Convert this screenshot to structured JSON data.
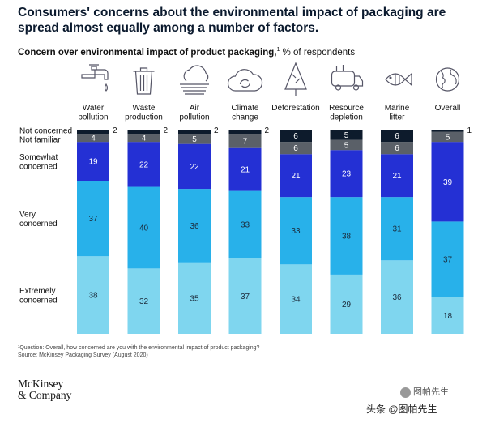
{
  "headline": "Consumers' concerns about the environmental impact of packaging are spread almost equally among a number of factors.",
  "subtitle_bold": "Concern over environmental impact of product packaging,",
  "subtitle_sup": "1",
  "subtitle_rest": " % of respondents",
  "footnote_1": "¹Question: Overall, how concerned are you with the environmental impact of product packaging?",
  "footnote_2": "Source: McKinsey Packaging Survey (August 2020)",
  "logo_line1": "McKinsey",
  "logo_line2": "& Company",
  "watermark_1": "图帕先生",
  "watermark_2": "头条 @图帕先生",
  "chart_data": {
    "type": "bar",
    "stacked": true,
    "categories": [
      {
        "label": [
          "Water",
          "pollution"
        ],
        "icon": "faucet-icon"
      },
      {
        "label": [
          "Waste",
          "production"
        ],
        "icon": "trash-can-icon"
      },
      {
        "label": [
          "Air",
          "pollution"
        ],
        "icon": "air-cloud-icon"
      },
      {
        "label": [
          "Climate",
          "change"
        ],
        "icon": "climate-cloud-icon"
      },
      {
        "label": [
          "Deforestation"
        ],
        "icon": "tree-icon"
      },
      {
        "label": [
          "Resource",
          "depletion"
        ],
        "icon": "tanker-truck-icon"
      },
      {
        "label": [
          "Marine",
          "litter"
        ],
        "icon": "fish-icon"
      },
      {
        "label": [
          "Overall"
        ],
        "icon": "globe-icon"
      }
    ],
    "series": [
      {
        "name": "Extremely concerned",
        "label_lines": [
          "Extremely",
          "concerned"
        ],
        "color": "#7fd6ef",
        "values": [
          38,
          32,
          35,
          37,
          34,
          29,
          36,
          18
        ]
      },
      {
        "name": "Very concerned",
        "label_lines": [
          "Very",
          "concerned"
        ],
        "color": "#28b1ea",
        "values": [
          37,
          40,
          36,
          33,
          33,
          38,
          31,
          37
        ]
      },
      {
        "name": "Somewhat concerned",
        "label_lines": [
          "Somewhat",
          "concerned"
        ],
        "color": "#2430d4",
        "values": [
          19,
          22,
          22,
          21,
          21,
          23,
          21,
          39
        ]
      },
      {
        "name": "Not familiar",
        "label_lines": [
          "Not familiar"
        ],
        "color": "#5a6068",
        "values": [
          4,
          4,
          5,
          7,
          6,
          5,
          6,
          5
        ]
      },
      {
        "name": "Not concerned",
        "label_lines": [
          "Not concerned"
        ],
        "color": "#0d1b2c",
        "values": [
          2,
          2,
          2,
          2,
          6,
          5,
          6,
          1
        ]
      }
    ],
    "ylim": [
      0,
      100
    ]
  }
}
